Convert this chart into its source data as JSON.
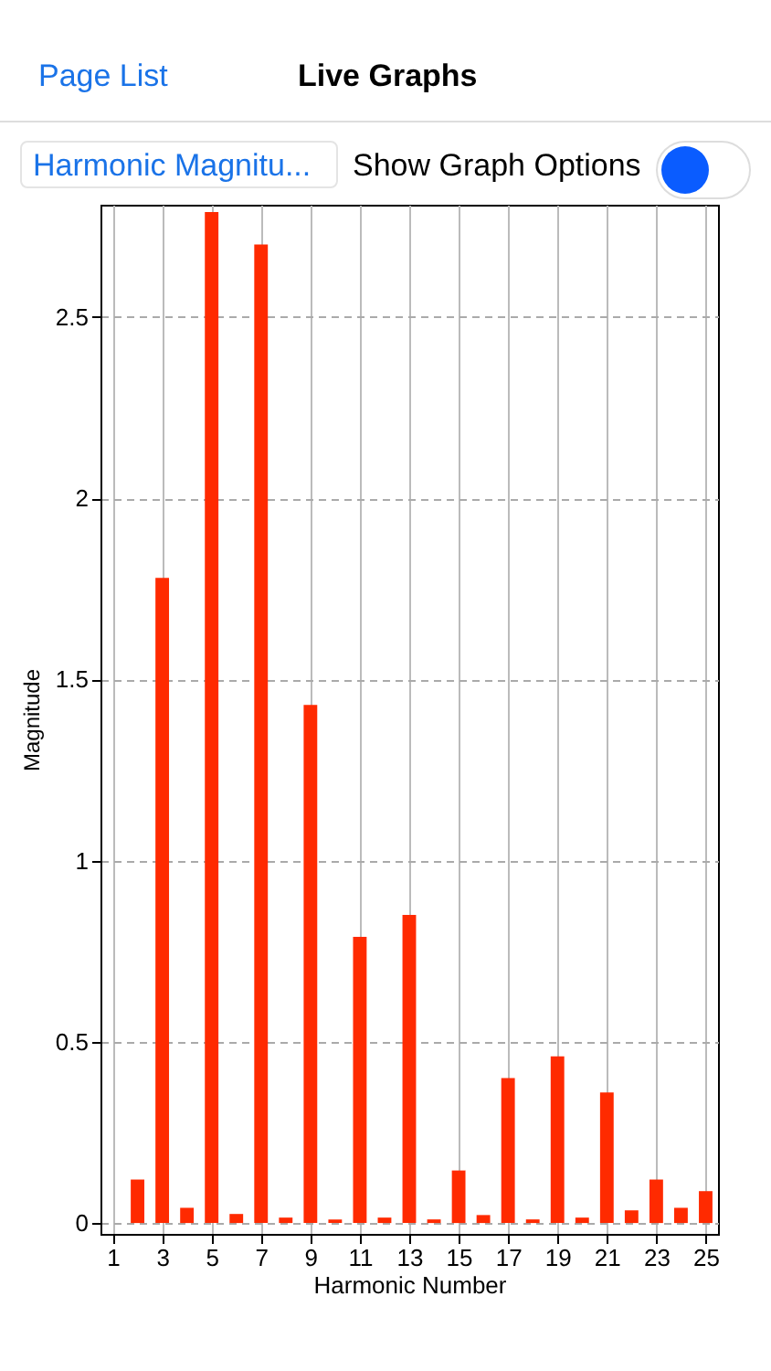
{
  "chart_data": {
    "type": "bar",
    "xlabel": "Harmonic Number",
    "ylabel": "Magnitude",
    "annotations": [
      "Page List",
      "Live Graphs",
      "Harmonic Magnitu...",
      "Show Graph Options"
    ],
    "x": [
      2,
      3,
      4,
      5,
      6,
      7,
      8,
      9,
      10,
      11,
      12,
      13,
      14,
      15,
      16,
      17,
      18,
      19,
      20,
      21,
      22,
      23,
      24,
      25
    ],
    "values": [
      0.12,
      1.78,
      0.042,
      2.79,
      0.025,
      2.7,
      0.015,
      1.43,
      0.01,
      0.79,
      0.015,
      0.85,
      0.01,
      0.145,
      0.022,
      0.4,
      0.01,
      0.46,
      0.015,
      0.36,
      0.035,
      0.12,
      0.042,
      0.088
    ],
    "color": "#ff2a00",
    "xlim": [
      0.5,
      25.5
    ],
    "xticks": [
      1,
      3,
      5,
      7,
      9,
      11,
      13,
      15,
      17,
      19,
      21,
      23,
      25
    ],
    "ylim": [
      -0.03,
      2.81
    ],
    "yticks": [
      0,
      0.5,
      1,
      1.5,
      2,
      2.5
    ],
    "grid": true
  }
}
